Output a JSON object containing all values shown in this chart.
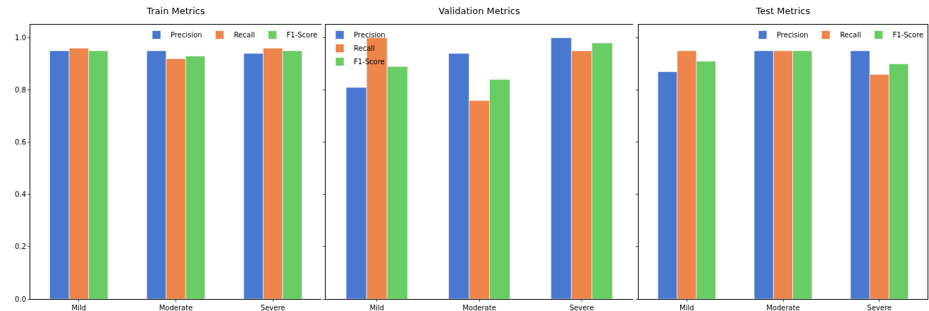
{
  "chart_data": [
    {
      "type": "bar",
      "title": "Train Metrics",
      "categories": [
        "Mild",
        "Moderate",
        "Severe"
      ],
      "series": [
        {
          "name": "Precision",
          "color": "#4878d0",
          "values": [
            0.95,
            0.95,
            0.94
          ]
        },
        {
          "name": "Recall",
          "color": "#ee854a",
          "values": [
            0.96,
            0.92,
            0.96
          ]
        },
        {
          "name": "F1-Score",
          "color": "#6acc64",
          "values": [
            0.95,
            0.93,
            0.95
          ]
        }
      ],
      "ylim": [
        0,
        1.05
      ],
      "yticks": [
        {
          "value": 0,
          "label": "0.0"
        },
        0.2,
        0.4,
        0.6,
        0.8,
        {
          "value": 1,
          "label": "1.0"
        }
      ],
      "legend": "top right"
    },
    {
      "type": "bar",
      "title": "Validation Metrics",
      "categories": [
        "Mild",
        "Moderate",
        "Severe"
      ],
      "series": [
        {
          "name": "Precision",
          "color": "#4878d0",
          "values": [
            0.81,
            0.94,
            1.0
          ]
        },
        {
          "name": "Recall",
          "color": "#ee854a",
          "values": [
            1.0,
            0.76,
            0.95
          ]
        },
        {
          "name": "F1-Score",
          "color": "#6acc64",
          "values": [
            0.89,
            0.84,
            0.98
          ]
        }
      ],
      "ylim": [
        0,
        1.05
      ],
      "yticks": [
        0,
        0.2,
        0.4,
        0.6,
        0.8,
        1
      ],
      "tick_labels": "x",
      "legend": "top left"
    },
    {
      "type": "bar",
      "title": "Test Metrics",
      "categories": [
        "Mild",
        "Moderate",
        "Severe"
      ],
      "series": [
        {
          "name": "Precision",
          "color": "#4878d0",
          "values": [
            0.87,
            0.95,
            0.95
          ]
        },
        {
          "name": "Recall",
          "color": "#ee854a",
          "values": [
            0.95,
            0.95,
            0.86
          ]
        },
        {
          "name": "F1-Score",
          "color": "#6acc64",
          "values": [
            0.91,
            0.95,
            0.9
          ]
        }
      ],
      "ylim": [
        0,
        1.05
      ],
      "yticks": [
        0,
        0.2,
        0.4,
        0.6,
        0.8,
        1
      ],
      "tick_labels": "x",
      "legend": "top right"
    }
  ]
}
